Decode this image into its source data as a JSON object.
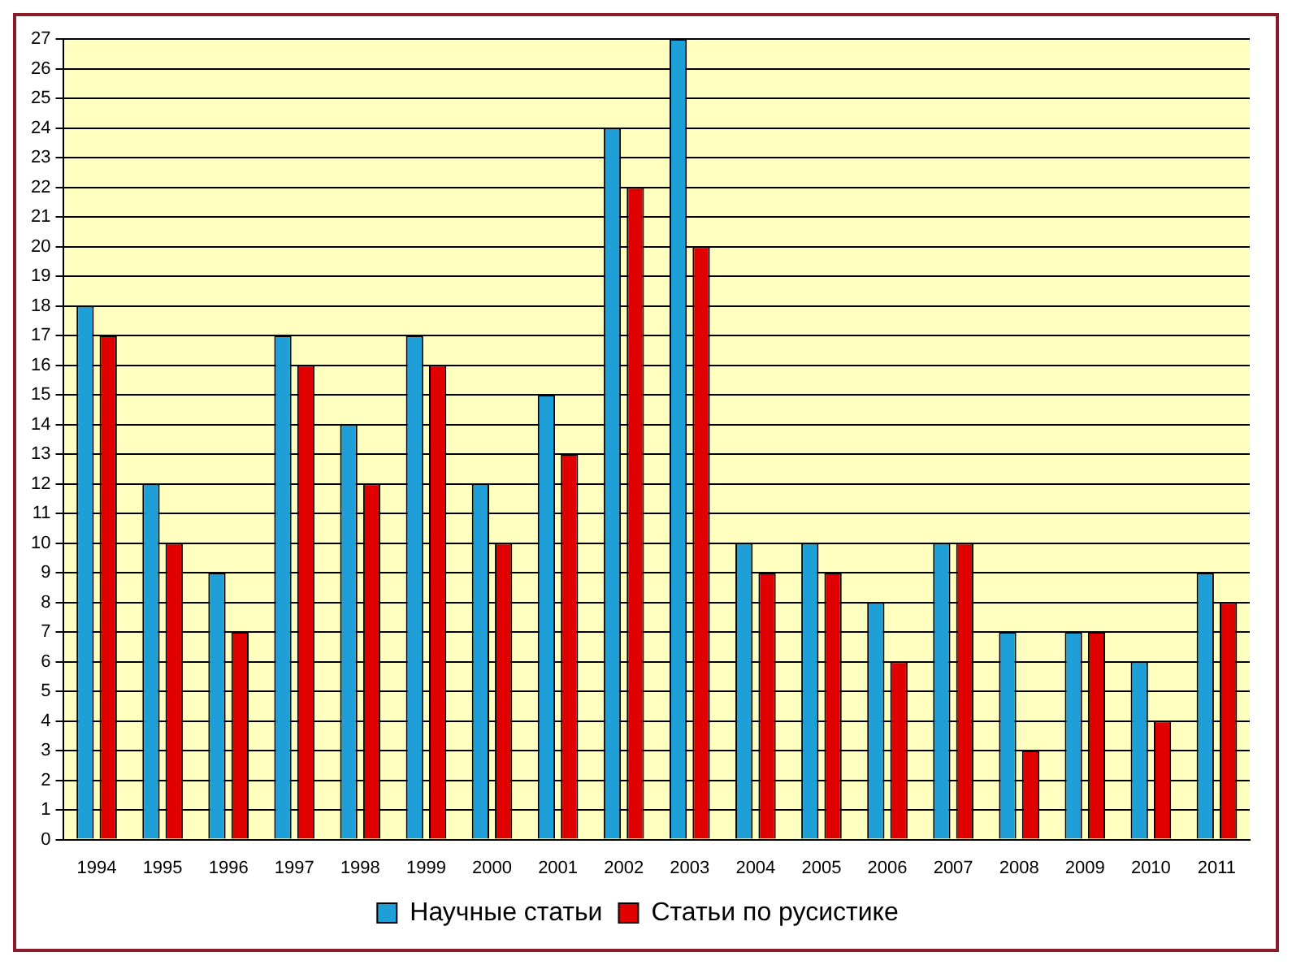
{
  "chart_data": {
    "type": "bar",
    "categories": [
      "1994",
      "1995",
      "1996",
      "1997",
      "1998",
      "1999",
      "2000",
      "2001",
      "2002",
      "2003",
      "2004",
      "2005",
      "2006",
      "2007",
      "2008",
      "2009",
      "2010",
      "2011"
    ],
    "series": [
      {
        "name": "Научные статьи",
        "color": "#1e9fd8",
        "values": [
          18,
          12,
          9,
          17,
          14,
          17,
          12,
          15,
          24,
          27,
          10,
          10,
          8,
          10,
          7,
          7,
          6,
          9
        ]
      },
      {
        "name": "Статьи по русистике",
        "color": "#e00000",
        "values": [
          17,
          10,
          7,
          16,
          12,
          16,
          10,
          13,
          22,
          20,
          9,
          9,
          6,
          10,
          3,
          7,
          4,
          8
        ]
      }
    ],
    "ylim": [
      0,
      27
    ],
    "yticks": [
      0,
      1,
      2,
      3,
      4,
      5,
      6,
      7,
      8,
      9,
      10,
      11,
      12,
      13,
      14,
      15,
      16,
      17,
      18,
      19,
      20,
      21,
      22,
      23,
      24,
      25,
      26,
      27
    ],
    "grid": "y",
    "legend": "bottom"
  }
}
